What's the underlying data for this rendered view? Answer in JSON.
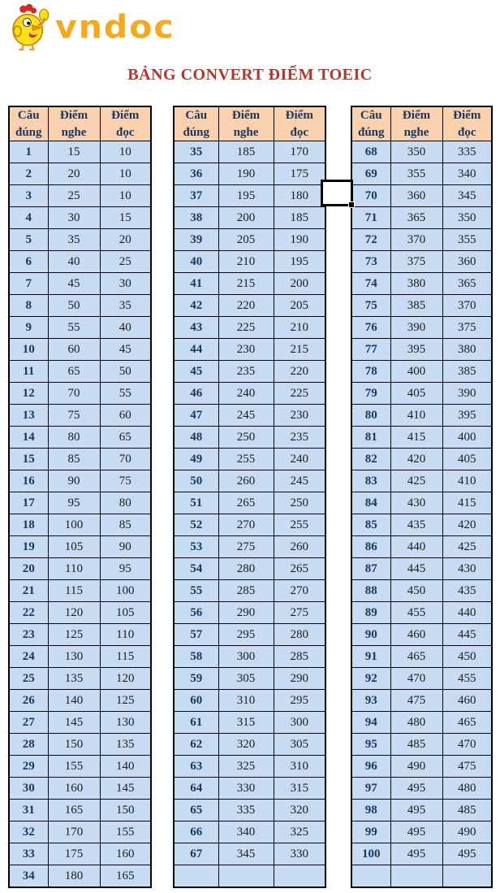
{
  "logo": {
    "brand": "vndoc",
    "mascot": "chicken-mascot"
  },
  "title": "BẢNG CONVERT ĐIỂM TOEIC",
  "colors": {
    "title_red": "#B5342B",
    "brand_orange": "#F9A81B",
    "header_bg": "#FAD1AE",
    "header_text": "#17375E",
    "row_bg": "#C7DBF2",
    "row_number_text": "#17375E",
    "value_text": "#1C1C1C",
    "border": "#000000"
  },
  "columns": [
    "Câu đúng",
    "Điểm nghe",
    "Điểm đọc"
  ],
  "tables": [
    {
      "name": "conversion-table-1-34",
      "trailing_blank_row": false,
      "rows": [
        [
          1,
          15,
          10
        ],
        [
          2,
          20,
          10
        ],
        [
          3,
          25,
          10
        ],
        [
          4,
          30,
          15
        ],
        [
          5,
          35,
          20
        ],
        [
          6,
          40,
          25
        ],
        [
          7,
          45,
          30
        ],
        [
          8,
          50,
          35
        ],
        [
          9,
          55,
          40
        ],
        [
          10,
          60,
          45
        ],
        [
          11,
          65,
          50
        ],
        [
          12,
          70,
          55
        ],
        [
          13,
          75,
          60
        ],
        [
          14,
          80,
          65
        ],
        [
          15,
          85,
          70
        ],
        [
          16,
          90,
          75
        ],
        [
          17,
          95,
          80
        ],
        [
          18,
          100,
          85
        ],
        [
          19,
          105,
          90
        ],
        [
          20,
          110,
          95
        ],
        [
          21,
          115,
          100
        ],
        [
          22,
          120,
          105
        ],
        [
          23,
          125,
          110
        ],
        [
          24,
          130,
          115
        ],
        [
          25,
          135,
          120
        ],
        [
          26,
          140,
          125
        ],
        [
          27,
          145,
          130
        ],
        [
          28,
          150,
          135
        ],
        [
          29,
          155,
          140
        ],
        [
          30,
          160,
          145
        ],
        [
          31,
          165,
          150
        ],
        [
          32,
          170,
          155
        ],
        [
          33,
          175,
          160
        ],
        [
          34,
          180,
          165
        ]
      ]
    },
    {
      "name": "conversion-table-35-67",
      "trailing_blank_row": true,
      "rows": [
        [
          35,
          185,
          170
        ],
        [
          36,
          190,
          175
        ],
        [
          37,
          195,
          180
        ],
        [
          38,
          200,
          185
        ],
        [
          39,
          205,
          190
        ],
        [
          40,
          210,
          195
        ],
        [
          41,
          215,
          200
        ],
        [
          42,
          220,
          205
        ],
        [
          43,
          225,
          210
        ],
        [
          44,
          230,
          215
        ],
        [
          45,
          235,
          220
        ],
        [
          46,
          240,
          225
        ],
        [
          47,
          245,
          230
        ],
        [
          48,
          250,
          235
        ],
        [
          49,
          255,
          240
        ],
        [
          50,
          260,
          245
        ],
        [
          51,
          265,
          250
        ],
        [
          52,
          270,
          255
        ],
        [
          53,
          275,
          260
        ],
        [
          54,
          280,
          265
        ],
        [
          55,
          285,
          270
        ],
        [
          56,
          290,
          275
        ],
        [
          57,
          295,
          280
        ],
        [
          58,
          300,
          285
        ],
        [
          59,
          305,
          290
        ],
        [
          60,
          310,
          295
        ],
        [
          61,
          315,
          300
        ],
        [
          62,
          320,
          305
        ],
        [
          63,
          325,
          310
        ],
        [
          64,
          330,
          315
        ],
        [
          65,
          335,
          320
        ],
        [
          66,
          340,
          325
        ],
        [
          67,
          345,
          330
        ]
      ]
    },
    {
      "name": "conversion-table-68-100",
      "trailing_blank_row": true,
      "rows": [
        [
          68,
          350,
          335
        ],
        [
          69,
          355,
          340
        ],
        [
          70,
          360,
          345
        ],
        [
          71,
          365,
          350
        ],
        [
          72,
          370,
          355
        ],
        [
          73,
          375,
          360
        ],
        [
          74,
          380,
          365
        ],
        [
          75,
          385,
          370
        ],
        [
          76,
          390,
          375
        ],
        [
          77,
          395,
          380
        ],
        [
          78,
          400,
          385
        ],
        [
          79,
          405,
          390
        ],
        [
          80,
          410,
          395
        ],
        [
          81,
          415,
          400
        ],
        [
          82,
          420,
          405
        ],
        [
          83,
          425,
          410
        ],
        [
          84,
          430,
          415
        ],
        [
          85,
          435,
          420
        ],
        [
          86,
          440,
          425
        ],
        [
          87,
          445,
          430
        ],
        [
          88,
          450,
          435
        ],
        [
          89,
          455,
          440
        ],
        [
          90,
          460,
          445
        ],
        [
          91,
          465,
          450
        ],
        [
          92,
          470,
          455
        ],
        [
          93,
          475,
          460
        ],
        [
          94,
          480,
          465
        ],
        [
          95,
          485,
          470
        ],
        [
          96,
          490,
          475
        ],
        [
          97,
          495,
          480
        ],
        [
          98,
          495,
          485
        ],
        [
          99,
          495,
          490
        ],
        [
          100,
          495,
          495
        ]
      ]
    }
  ],
  "selection_box": {
    "present": true,
    "value": ""
  }
}
